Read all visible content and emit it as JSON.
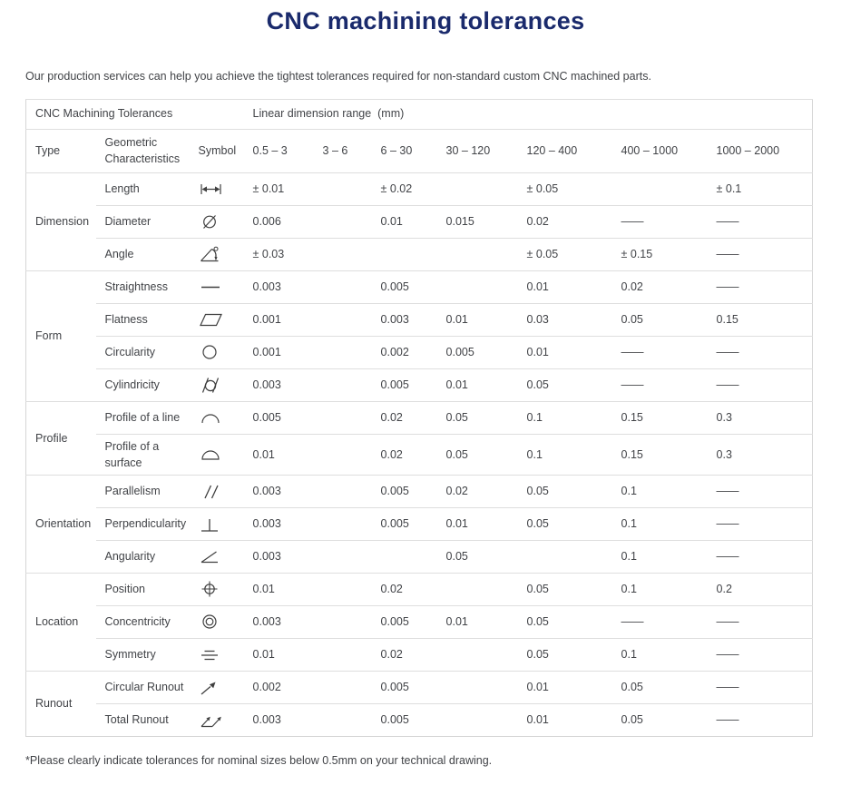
{
  "page": {
    "title": "CNC machining tolerances",
    "intro": "Our production services can help you achieve the tightest tolerances required for non-standard custom CNC machined parts.",
    "footnote": "*Please clearly indicate tolerances for nominal sizes below 0.5mm on your technical drawing."
  },
  "colors": {
    "title": "#1a2a6c",
    "body_text": "#414347",
    "table_border": "#d5d5d5",
    "symbol_stroke": "#3f3f3f"
  },
  "table": {
    "header_left": "CNC Machining Tolerances",
    "header_right": "Linear dimension range  (mm)",
    "columns": [
      "Type",
      "Geometric Characteristics",
      "Symbol",
      "0.5 – 3",
      "3 – 6",
      "6 – 30",
      "30 – 120",
      "120 – 400",
      "400 – 1000",
      "1000 – 2000"
    ],
    "groups": [
      {
        "type": "Dimension",
        "rows": [
          {
            "characteristic": "Length",
            "icon": "length-icon",
            "values": [
              "± 0.01",
              "",
              "± 0.02",
              "",
              "± 0.05",
              "",
              "± 0.1"
            ]
          },
          {
            "characteristic": "Diameter",
            "icon": "diameter-icon",
            "values": [
              "0.006",
              "",
              "0.01",
              "0.015",
              "0.02",
              "——",
              "——"
            ]
          },
          {
            "characteristic": "Angle",
            "icon": "angle-icon",
            "values": [
              "± 0.03",
              "",
              "",
              "",
              "± 0.05",
              "± 0.15",
              "——"
            ]
          }
        ]
      },
      {
        "type": "Form",
        "rows": [
          {
            "characteristic": "Straightness",
            "icon": "straightness-icon",
            "values": [
              "0.003",
              "",
              "0.005",
              "",
              "0.01",
              "0.02",
              "——"
            ]
          },
          {
            "characteristic": "Flatness",
            "icon": "flatness-icon",
            "values": [
              "0.001",
              "",
              "0.003",
              "0.01",
              "0.03",
              "0.05",
              "0.15"
            ]
          },
          {
            "characteristic": "Circularity",
            "icon": "circularity-icon",
            "values": [
              "0.001",
              "",
              "0.002",
              "0.005",
              "0.01",
              "——",
              "——"
            ]
          },
          {
            "characteristic": "Cylindricity",
            "icon": "cylindricity-icon",
            "values": [
              "0.003",
              "",
              "0.005",
              "0.01",
              "0.05",
              "——",
              "——"
            ]
          }
        ]
      },
      {
        "type": "Profile",
        "rows": [
          {
            "characteristic": "Profile of a line",
            "icon": "profile-line-icon",
            "values": [
              "0.005",
              "",
              "0.02",
              "0.05",
              "0.1",
              "0.15",
              "0.3"
            ]
          },
          {
            "characteristic": "Profile of a surface",
            "icon": "profile-surface-icon",
            "values": [
              "0.01",
              "",
              "0.02",
              "0.05",
              "0.1",
              "0.15",
              "0.3"
            ]
          }
        ]
      },
      {
        "type": "Orientation",
        "rows": [
          {
            "characteristic": "Parallelism",
            "icon": "parallelism-icon",
            "values": [
              "0.003",
              "",
              "0.005",
              "0.02",
              "0.05",
              "0.1",
              "——"
            ]
          },
          {
            "characteristic": "Perpendicularity",
            "icon": "perpendicularity-icon",
            "values": [
              "0.003",
              "",
              "0.005",
              "0.01",
              "0.05",
              "0.1",
              "——"
            ]
          },
          {
            "characteristic": "Angularity",
            "icon": "angularity-icon",
            "values": [
              "0.003",
              "",
              "",
              "0.05",
              "",
              "0.1",
              "——"
            ]
          }
        ]
      },
      {
        "type": "Location",
        "rows": [
          {
            "characteristic": "Position",
            "icon": "position-icon",
            "values": [
              "0.01",
              "",
              "0.02",
              "",
              "0.05",
              "0.1",
              "0.2"
            ]
          },
          {
            "characteristic": "Concentricity",
            "icon": "concentricity-icon",
            "values": [
              "0.003",
              "",
              "0.005",
              "0.01",
              "0.05",
              "——",
              "——"
            ]
          },
          {
            "characteristic": "Symmetry",
            "icon": "symmetry-icon",
            "values": [
              "0.01",
              "",
              "0.02",
              "",
              "0.05",
              "0.1",
              "——"
            ]
          }
        ]
      },
      {
        "type": "Runout",
        "rows": [
          {
            "characteristic": "Circular Runout",
            "icon": "circular-runout-icon",
            "values": [
              "0.002",
              "",
              "0.005",
              "",
              "0.01",
              "0.05",
              "——"
            ]
          },
          {
            "characteristic": "Total Runout",
            "icon": "total-runout-icon",
            "values": [
              "0.003",
              "",
              "0.005",
              "",
              "0.01",
              "0.05",
              "——"
            ]
          }
        ]
      }
    ]
  }
}
